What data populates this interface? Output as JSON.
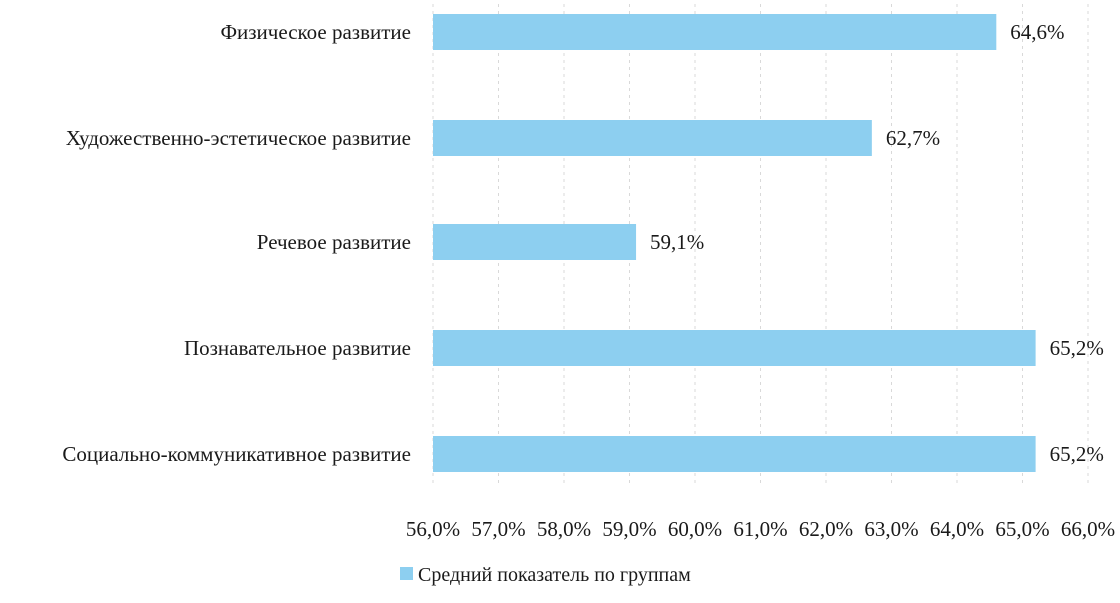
{
  "chart_data": {
    "type": "bar",
    "orientation": "horizontal",
    "categories": [
      "Физическое развитие",
      "Художественно-эстетическое развитие",
      "Речевое развитие",
      "Познавательное развитие",
      "Социально-коммуникативное развитие"
    ],
    "series": [
      {
        "name": "Средний показатель по группам",
        "values": [
          64.6,
          62.7,
          59.1,
          65.2,
          65.2
        ],
        "data_labels": [
          "64,6%",
          "62,7%",
          "59,1%",
          "65,2%",
          "65,2%"
        ],
        "color": "#8dcff0"
      }
    ],
    "xlim": [
      56,
      66
    ],
    "x_ticks": [
      56,
      57,
      58,
      59,
      60,
      61,
      62,
      63,
      64,
      65,
      66
    ],
    "x_tick_labels": [
      "56,0%",
      "57,0%",
      "58,0%",
      "59,0%",
      "60,0%",
      "61,0%",
      "62,0%",
      "63,0%",
      "64,0%",
      "65,0%",
      "66,0%"
    ],
    "grid": true,
    "legend_position": "bottom-center",
    "title": "",
    "xlabel": "",
    "ylabel": ""
  }
}
